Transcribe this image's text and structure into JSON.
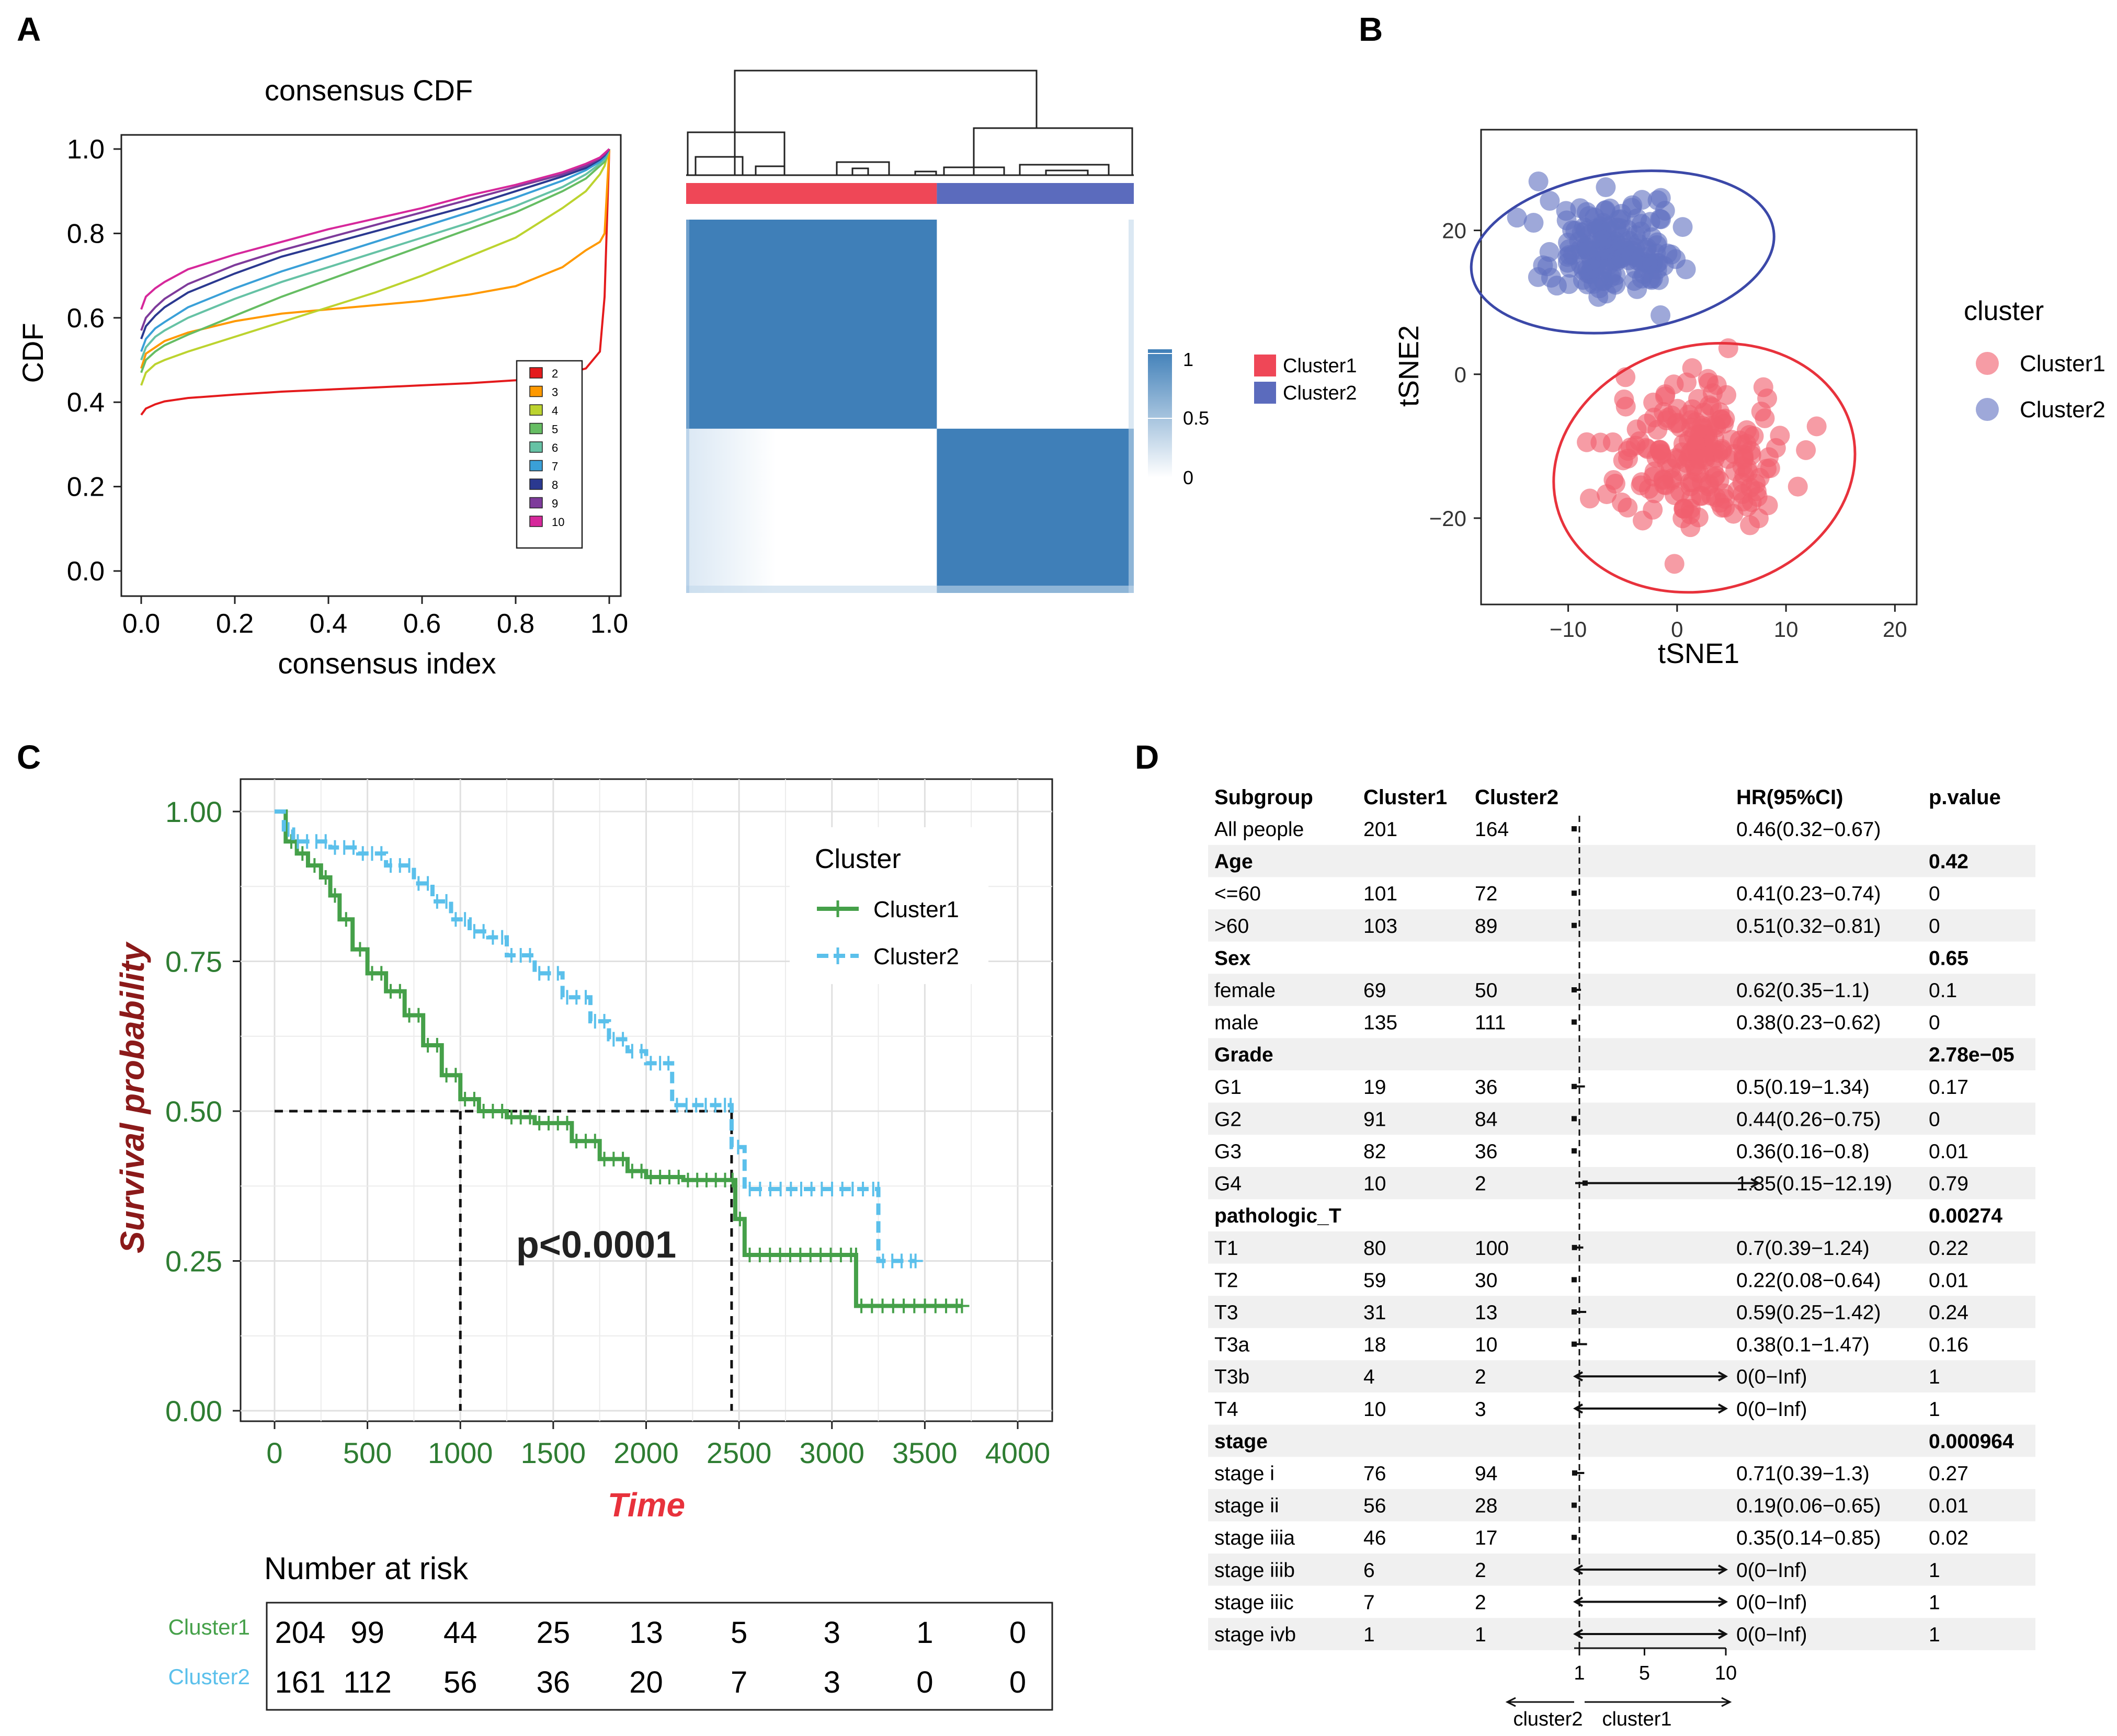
{
  "panel_letters": [
    "A",
    "B",
    "C",
    "D"
  ],
  "chart_data": [
    {
      "id": "cdf",
      "type": "line",
      "title": "consensus CDF",
      "xlabel": "consensus index",
      "ylabel": "CDF",
      "xlim": [
        0,
        1
      ],
      "ylim": [
        0,
        1
      ],
      "xticks": [
        "0.0",
        "0.2",
        "0.4",
        "0.6",
        "0.8",
        "1.0"
      ],
      "yticks": [
        "0.0",
        "0.2",
        "0.4",
        "0.6",
        "0.8",
        "1.0"
      ],
      "legend_position": "bottom-right",
      "x": [
        0,
        0.01,
        0.03,
        0.05,
        0.1,
        0.2,
        0.3,
        0.4,
        0.5,
        0.6,
        0.7,
        0.8,
        0.9,
        0.95,
        0.98,
        0.99,
        1.0
      ],
      "series": [
        {
          "name": "2",
          "color": "#e41a1c",
          "values": [
            0.37,
            0.385,
            0.395,
            0.402,
            0.41,
            0.418,
            0.425,
            0.43,
            0.435,
            0.44,
            0.445,
            0.452,
            0.465,
            0.48,
            0.52,
            0.65,
            1.0
          ]
        },
        {
          "name": "3",
          "color": "#ff9900",
          "values": [
            0.48,
            0.515,
            0.53,
            0.545,
            0.565,
            0.592,
            0.61,
            0.62,
            0.63,
            0.64,
            0.655,
            0.675,
            0.72,
            0.76,
            0.78,
            0.8,
            1.0
          ]
        },
        {
          "name": "4",
          "color": "#bcd32f",
          "values": [
            0.44,
            0.47,
            0.49,
            0.5,
            0.52,
            0.555,
            0.59,
            0.625,
            0.66,
            0.7,
            0.745,
            0.79,
            0.86,
            0.9,
            0.94,
            0.96,
            1.0
          ]
        },
        {
          "name": "5",
          "color": "#66bd63",
          "values": [
            0.47,
            0.5,
            0.52,
            0.535,
            0.56,
            0.605,
            0.65,
            0.69,
            0.73,
            0.77,
            0.81,
            0.85,
            0.9,
            0.93,
            0.96,
            0.97,
            1.0
          ]
        },
        {
          "name": "6",
          "color": "#66c2a5",
          "values": [
            0.5,
            0.53,
            0.555,
            0.57,
            0.6,
            0.645,
            0.685,
            0.72,
            0.755,
            0.79,
            0.825,
            0.865,
            0.91,
            0.94,
            0.965,
            0.975,
            1.0
          ]
        },
        {
          "name": "7",
          "color": "#3aa0d8",
          "values": [
            0.52,
            0.55,
            0.575,
            0.59,
            0.625,
            0.67,
            0.71,
            0.745,
            0.78,
            0.815,
            0.85,
            0.885,
            0.925,
            0.95,
            0.97,
            0.98,
            1.0
          ]
        },
        {
          "name": "8",
          "color": "#2b3990",
          "values": [
            0.55,
            0.58,
            0.605,
            0.625,
            0.66,
            0.705,
            0.745,
            0.775,
            0.805,
            0.835,
            0.865,
            0.9,
            0.935,
            0.955,
            0.975,
            0.985,
            1.0
          ]
        },
        {
          "name": "9",
          "color": "#7e3b9b",
          "values": [
            0.57,
            0.6,
            0.625,
            0.645,
            0.68,
            0.725,
            0.76,
            0.79,
            0.82,
            0.85,
            0.88,
            0.91,
            0.94,
            0.96,
            0.978,
            0.987,
            1.0
          ]
        },
        {
          "name": "10",
          "color": "#d6289b",
          "values": [
            0.62,
            0.65,
            0.67,
            0.685,
            0.715,
            0.75,
            0.78,
            0.81,
            0.835,
            0.86,
            0.89,
            0.915,
            0.945,
            0.965,
            0.98,
            0.99,
            1.0
          ]
        }
      ]
    },
    {
      "id": "heatmap",
      "type": "heatmap",
      "clusters": [
        {
          "name": "Cluster1",
          "color": "#ef4757",
          "fraction": 0.56
        },
        {
          "name": "Cluster2",
          "color": "#5b6bbd",
          "fraction": 0.44
        }
      ],
      "colorbar_ticks": [
        "1",
        "0.5",
        "0"
      ],
      "colorbar_colors": [
        "#3f7fb8",
        "#ffffff"
      ]
    },
    {
      "id": "tsne",
      "type": "scatter",
      "xlabel": "tSNE1",
      "ylabel": "tSNE2",
      "xlim": [
        -18,
        22
      ],
      "ylim": [
        -32,
        34
      ],
      "xticks": [
        -10,
        0,
        10,
        20
      ],
      "xtick_labels": [
        "−10",
        "0",
        "10",
        "20"
      ],
      "yticks": [
        20,
        0,
        -20
      ],
      "ytick_labels": [
        "20",
        "0",
        "−20"
      ],
      "legend_title": "cluster",
      "groups": [
        {
          "name": "Cluster1",
          "color": "#f0606e",
          "center": [
            2,
            -12
          ],
          "spread": [
            6.5,
            8.5
          ],
          "count": 200,
          "ellipse": {
            "cx": 2.5,
            "cy": -13,
            "rx": 14,
            "ry": 17,
            "angle": -15
          }
        },
        {
          "name": "Cluster2",
          "color": "#6272c2",
          "center": [
            -6,
            17
          ],
          "spread": [
            5,
            6
          ],
          "count": 160,
          "ellipse": {
            "cx": -5,
            "cy": 17,
            "rx": 14,
            "ry": 11,
            "angle": -8
          }
        }
      ]
    },
    {
      "id": "km",
      "type": "line",
      "xlabel": "Time",
      "ylabel": "Survival probability",
      "annotation": "p<0.0001",
      "xlim": [
        0,
        4000
      ],
      "ylim": [
        0,
        1
      ],
      "xticks": [
        0,
        500,
        1000,
        1500,
        2000,
        2500,
        3000,
        3500,
        4000
      ],
      "yticks": [
        "0.00",
        "0.25",
        "0.50",
        "0.75",
        "1.00"
      ],
      "legend_title": "Cluster",
      "median_lines": [
        1000,
        2460
      ],
      "series": [
        {
          "name": "Cluster1",
          "color": "#45a049",
          "dash": false,
          "points": [
            [
              0,
              1
            ],
            [
              60,
              0.95
            ],
            [
              120,
              0.93
            ],
            [
              180,
              0.91
            ],
            [
              250,
              0.89
            ],
            [
              300,
              0.86
            ],
            [
              350,
              0.82
            ],
            [
              420,
              0.77
            ],
            [
              500,
              0.73
            ],
            [
              600,
              0.7
            ],
            [
              700,
              0.66
            ],
            [
              800,
              0.61
            ],
            [
              900,
              0.56
            ],
            [
              1000,
              0.52
            ],
            [
              1100,
              0.5
            ],
            [
              1250,
              0.49
            ],
            [
              1400,
              0.48
            ],
            [
              1600,
              0.45
            ],
            [
              1750,
              0.42
            ],
            [
              1900,
              0.4
            ],
            [
              2000,
              0.39
            ],
            [
              2200,
              0.385
            ],
            [
              2450,
              0.385
            ],
            [
              2480,
              0.32
            ],
            [
              2530,
              0.26
            ],
            [
              3130,
              0.26
            ],
            [
              3130,
              0.175
            ],
            [
              3700,
              0.175
            ]
          ]
        },
        {
          "name": "Cluster2",
          "color": "#5bc0eb",
          "dash": true,
          "points": [
            [
              0,
              1
            ],
            [
              50,
              0.97
            ],
            [
              100,
              0.95
            ],
            [
              300,
              0.94
            ],
            [
              450,
              0.93
            ],
            [
              600,
              0.91
            ],
            [
              750,
              0.88
            ],
            [
              850,
              0.85
            ],
            [
              950,
              0.82
            ],
            [
              1050,
              0.8
            ],
            [
              1150,
              0.79
            ],
            [
              1250,
              0.76
            ],
            [
              1400,
              0.73
            ],
            [
              1550,
              0.69
            ],
            [
              1700,
              0.65
            ],
            [
              1800,
              0.62
            ],
            [
              1900,
              0.6
            ],
            [
              2000,
              0.58
            ],
            [
              2100,
              0.58
            ],
            [
              2140,
              0.51
            ],
            [
              2450,
              0.51
            ],
            [
              2460,
              0.44
            ],
            [
              2530,
              0.37
            ],
            [
              3250,
              0.37
            ],
            [
              3250,
              0.25
            ],
            [
              3450,
              0.25
            ]
          ]
        }
      ],
      "risk_table": {
        "title": "Number at risk",
        "rows": [
          {
            "name": "Cluster1",
            "color": "#45a049",
            "values": [
              "204",
              "99",
              "44",
              "25",
              "13",
              "5",
              "3",
              "1",
              "0"
            ]
          },
          {
            "name": "Cluster2",
            "color": "#5bc0eb",
            "values": [
              "161",
              "112",
              "56",
              "36",
              "20",
              "7",
              "3",
              "0",
              "0"
            ]
          }
        ]
      }
    },
    {
      "id": "forest",
      "type": "table",
      "headers": [
        "Subgroup",
        "Cluster1",
        "Cluster2",
        "HR(95%CI)",
        "p.value"
      ],
      "axis_ticks": [
        "1",
        "5",
        "10"
      ],
      "axis_left_label": "cluster2",
      "axis_right_label": "cluster1",
      "rows": [
        {
          "sub": "All people",
          "c1": "201",
          "c2": "164",
          "hr": "0.46(0.32−0.67)",
          "p": "",
          "bold": false,
          "est": 0.46,
          "lo": 0.32,
          "hi": 0.67
        },
        {
          "sub": "Age",
          "c1": "",
          "c2": "",
          "hr": "",
          "p": "0.42",
          "bold": true
        },
        {
          "sub": "<=60",
          "c1": "101",
          "c2": "72",
          "hr": "0.41(0.23−0.74)",
          "p": "0",
          "bold": false,
          "est": 0.41,
          "lo": 0.23,
          "hi": 0.74
        },
        {
          "sub": ">60",
          "c1": "103",
          "c2": "89",
          "hr": "0.51(0.32−0.81)",
          "p": "0",
          "bold": false,
          "est": 0.51,
          "lo": 0.32,
          "hi": 0.81
        },
        {
          "sub": "Sex",
          "c1": "",
          "c2": "",
          "hr": "",
          "p": "0.65",
          "bold": true
        },
        {
          "sub": "female",
          "c1": "69",
          "c2": "50",
          "hr": "0.62(0.35−1.1)",
          "p": "0.1",
          "bold": false,
          "est": 0.62,
          "lo": 0.35,
          "hi": 1.1
        },
        {
          "sub": "male",
          "c1": "135",
          "c2": "111",
          "hr": "0.38(0.23−0.62)",
          "p": "0",
          "bold": false,
          "est": 0.38,
          "lo": 0.23,
          "hi": 0.62
        },
        {
          "sub": "Grade",
          "c1": "",
          "c2": "",
          "hr": "",
          "p": "2.78e−05",
          "bold": true
        },
        {
          "sub": "G1",
          "c1": "19",
          "c2": "36",
          "hr": "0.5(0.19−1.34)",
          "p": "0.17",
          "bold": false,
          "est": 0.5,
          "lo": 0.19,
          "hi": 1.34
        },
        {
          "sub": "G2",
          "c1": "91",
          "c2": "84",
          "hr": "0.44(0.26−0.75)",
          "p": "0",
          "bold": false,
          "est": 0.44,
          "lo": 0.26,
          "hi": 0.75
        },
        {
          "sub": "G3",
          "c1": "82",
          "c2": "36",
          "hr": "0.36(0.16−0.8)",
          "p": "0.01",
          "bold": false,
          "est": 0.36,
          "lo": 0.16,
          "hi": 0.8
        },
        {
          "sub": "G4",
          "c1": "10",
          "c2": "2",
          "hr": "1.35(0.15−12.19)",
          "p": "0.79",
          "bold": false,
          "est": 1.35,
          "lo": 0.15,
          "hi": 12.19
        },
        {
          "sub": "pathologic_T",
          "c1": "",
          "c2": "",
          "hr": "",
          "p": "0.00274",
          "bold": true
        },
        {
          "sub": "T1",
          "c1": "80",
          "c2": "100",
          "hr": "0.7(0.39−1.24)",
          "p": "0.22",
          "bold": false,
          "est": 0.7,
          "lo": 0.39,
          "hi": 1.24
        },
        {
          "sub": "T2",
          "c1": "59",
          "c2": "30",
          "hr": "0.22(0.08−0.64)",
          "p": "0.01",
          "bold": false,
          "est": 0.22,
          "lo": 0.08,
          "hi": 0.64
        },
        {
          "sub": "T3",
          "c1": "31",
          "c2": "13",
          "hr": "0.59(0.25−1.42)",
          "p": "0.24",
          "bold": false,
          "est": 0.59,
          "lo": 0.25,
          "hi": 1.42
        },
        {
          "sub": "T3a",
          "c1": "18",
          "c2": "10",
          "hr": "0.38(0.1−1.47)",
          "p": "0.16",
          "bold": false,
          "est": 0.38,
          "lo": 0.1,
          "hi": 1.47
        },
        {
          "sub": "T3b",
          "c1": "4",
          "c2": "2",
          "hr": "0(0−Inf)",
          "p": "1",
          "bold": false,
          "est": 0,
          "lo": 0,
          "hi": 99
        },
        {
          "sub": "T4",
          "c1": "10",
          "c2": "3",
          "hr": "0(0−Inf)",
          "p": "1",
          "bold": false,
          "est": 0,
          "lo": 0,
          "hi": 99
        },
        {
          "sub": "stage",
          "c1": "",
          "c2": "",
          "hr": "",
          "p": "0.000964",
          "bold": true
        },
        {
          "sub": "stage i",
          "c1": "76",
          "c2": "94",
          "hr": "0.71(0.39−1.3)",
          "p": "0.27",
          "bold": false,
          "est": 0.71,
          "lo": 0.39,
          "hi": 1.3
        },
        {
          "sub": "stage ii",
          "c1": "56",
          "c2": "28",
          "hr": "0.19(0.06−0.65)",
          "p": "0.01",
          "bold": false,
          "est": 0.19,
          "lo": 0.06,
          "hi": 0.65
        },
        {
          "sub": "stage iiia",
          "c1": "46",
          "c2": "17",
          "hr": "0.35(0.14−0.85)",
          "p": "0.02",
          "bold": false,
          "est": 0.35,
          "lo": 0.14,
          "hi": 0.85
        },
        {
          "sub": "stage iiib",
          "c1": "6",
          "c2": "2",
          "hr": "0(0−Inf)",
          "p": "1",
          "bold": false,
          "est": 0,
          "lo": 0,
          "hi": 99
        },
        {
          "sub": "stage iiic",
          "c1": "7",
          "c2": "2",
          "hr": "0(0−Inf)",
          "p": "1",
          "bold": false,
          "est": 0,
          "lo": 0,
          "hi": 99
        },
        {
          "sub": "stage ivb",
          "c1": "1",
          "c2": "1",
          "hr": "0(0−Inf)",
          "p": "1",
          "bold": false,
          "est": 0,
          "lo": 0,
          "hi": 99
        }
      ]
    }
  ]
}
